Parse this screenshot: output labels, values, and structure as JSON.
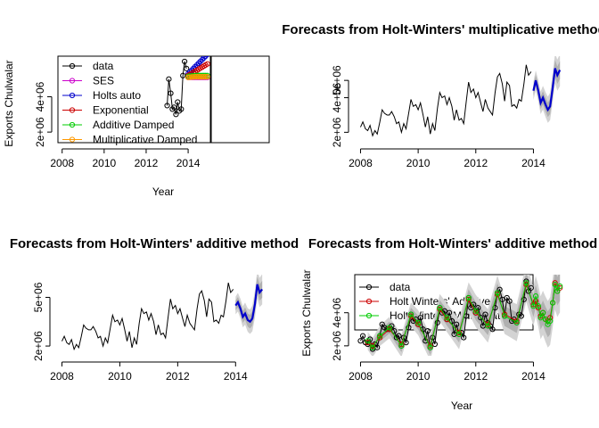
{
  "chart_data": [
    {
      "type": "line",
      "title": "",
      "xlabel": "Year",
      "ylabel": "Exports Chulwalar",
      "x_ticks": [
        "2008",
        "2010",
        "2012",
        "2014"
      ],
      "y_ticks": [
        "2e+06",
        "4e+06"
      ],
      "xlim": [
        2007.8,
        2015.1
      ],
      "ylim": [
        1400000,
        6300000
      ],
      "series": [
        {
          "name": "data",
          "color": "#000000",
          "marker": "circle",
          "x": [
            2013.0,
            2013.08,
            2013.17,
            2013.25,
            2013.33,
            2013.42,
            2013.5,
            2013.58,
            2013.67,
            2013.75,
            2013.83,
            2013.92
          ],
          "y": [
            3500000,
            5000000,
            4200000,
            3300000,
            3400000,
            3000000,
            3700000,
            3200000,
            3300000,
            5200000,
            6000000,
            5600000
          ]
        },
        {
          "name": "SES",
          "color": "#cc00cc",
          "marker": "circle",
          "x": [
            2014.0,
            2014.08,
            2014.17,
            2014.25,
            2014.33,
            2014.42,
            2014.5,
            2014.58,
            2014.67,
            2014.75,
            2014.83,
            2014.92
          ],
          "y": [
            5100000,
            5100000,
            5100000,
            5100000,
            5100000,
            5100000,
            5100000,
            5100000,
            5100000,
            5100000,
            5100000,
            5100000
          ]
        },
        {
          "name": "Holts auto",
          "color": "#0000cc",
          "marker": "circle",
          "x": [
            2014.0,
            2014.08,
            2014.17,
            2014.25,
            2014.33,
            2014.42,
            2014.5,
            2014.58,
            2014.67,
            2014.75,
            2014.83,
            2014.92
          ],
          "y": [
            5300000,
            5400000,
            5500000,
            5600000,
            5700000,
            5800000,
            5900000,
            6000000,
            6100000,
            6200000,
            6300000,
            6400000
          ]
        },
        {
          "name": "Exponential",
          "color": "#cc0000",
          "marker": "circle",
          "x": [
            2014.0,
            2014.08,
            2014.17,
            2014.25,
            2014.33,
            2014.42,
            2014.5,
            2014.58,
            2014.67,
            2014.75,
            2014.83,
            2014.92
          ],
          "y": [
            5200000,
            5260000,
            5320000,
            5380000,
            5440000,
            5500000,
            5560000,
            5620000,
            5680000,
            5740000,
            5800000,
            5860000
          ]
        },
        {
          "name": "Additive Damped",
          "color": "#00cc00",
          "marker": "circle",
          "x": [
            2014.0,
            2014.08,
            2014.17,
            2014.25,
            2014.33,
            2014.42,
            2014.5,
            2014.58,
            2014.67,
            2014.75,
            2014.83,
            2014.92
          ],
          "y": [
            5150000,
            5170000,
            5180000,
            5190000,
            5195000,
            5200000,
            5200000,
            5200000,
            5200000,
            5200000,
            5200000,
            5200000
          ]
        },
        {
          "name": "Multiplicative Damped",
          "color": "#ff9900",
          "marker": "circle",
          "x": [
            2014.0,
            2014.08,
            2014.17,
            2014.25,
            2014.33,
            2014.42,
            2014.5,
            2014.58,
            2014.67,
            2014.75,
            2014.83,
            2014.92
          ],
          "y": [
            5100000,
            5110000,
            5120000,
            5125000,
            5130000,
            5130000,
            5130000,
            5130000,
            5130000,
            5130000,
            5130000,
            5130000
          ]
        }
      ],
      "legend": [
        "data",
        "SES",
        "Holts auto",
        "Exponential",
        "Additive Damped",
        "Multiplicative Damped"
      ],
      "legend_position": "top-left"
    },
    {
      "type": "line",
      "title": "Forecasts from Holt-Winters' multiplicative method",
      "xlabel": "",
      "ylabel": "",
      "x_ticks": [
        "2008",
        "2010",
        "2012",
        "2014"
      ],
      "y_ticks": [
        "2e+06",
        "4e+06",
        "5e+06"
      ],
      "xlim": [
        2007.8,
        2015.1
      ],
      "ylim": [
        1400000,
        6400000
      ],
      "series": [
        {
          "name": "",
          "color": "#000000",
          "x": [
            2008.0,
            2008.08,
            2008.17,
            2008.25,
            2008.33,
            2008.42,
            2008.5,
            2008.58,
            2008.67,
            2008.75,
            2008.83,
            2008.92,
            2009.0,
            2009.08,
            2009.17,
            2009.25,
            2009.33,
            2009.42,
            2009.5,
            2009.58,
            2009.67,
            2009.75,
            2009.83,
            2009.92,
            2010.0,
            2010.08,
            2010.17,
            2010.25,
            2010.33,
            2010.42,
            2010.5,
            2010.58,
            2010.67,
            2010.75,
            2010.83,
            2010.92,
            2011.0,
            2011.08,
            2011.17,
            2011.25,
            2011.33,
            2011.42,
            2011.5,
            2011.58,
            2011.67,
            2011.75,
            2011.83,
            2011.92,
            2012.0,
            2012.08,
            2012.17,
            2012.25,
            2012.33,
            2012.42,
            2012.5,
            2012.58,
            2012.67,
            2012.75,
            2012.83,
            2012.92,
            2013.0,
            2013.08,
            2013.17,
            2013.25,
            2013.33,
            2013.42,
            2013.5,
            2013.58,
            2013.67,
            2013.75,
            2013.83,
            2013.92
          ],
          "y": [
            2300000,
            2600000,
            2200000,
            2100000,
            2400000,
            1800000,
            2100000,
            1900000,
            2600000,
            3300000,
            3100000,
            3000000,
            3000000,
            3200000,
            2900000,
            2500000,
            2600000,
            2000000,
            2500000,
            2200000,
            3100000,
            3900000,
            3500000,
            3600000,
            3300000,
            3700000,
            3000000,
            2300000,
            2900000,
            1900000,
            2500000,
            2100000,
            3400000,
            4300000,
            4000000,
            4100000,
            3600000,
            4000000,
            3500000,
            2700000,
            3300000,
            2700000,
            2800000,
            2500000,
            3800000,
            4900000,
            4300000,
            4500000,
            4000000,
            4300000,
            3700000,
            3200000,
            3900000,
            3400000,
            3200000,
            3000000,
            4300000,
            5200000,
            5400000,
            4800000,
            3800000,
            4900000,
            4700000,
            3500000,
            3600000,
            3400000,
            3900000,
            3800000,
            4800000,
            5900000,
            5300000,
            5500000
          ]
        },
        {
          "name": "",
          "color": "#0000cc",
          "x": [
            2014.0,
            2014.08,
            2014.17,
            2014.25,
            2014.33,
            2014.42,
            2014.5,
            2014.58,
            2014.67,
            2014.75,
            2014.83,
            2014.92
          ],
          "y": [
            4400000,
            5000000,
            4400000,
            3700000,
            4000000,
            3600000,
            3300000,
            3500000,
            4600000,
            5700000,
            5300000,
            5600000
          ]
        }
      ]
    },
    {
      "type": "line",
      "title": "Forecasts from Holt-Winters' additive method",
      "xlabel": "",
      "ylabel": "",
      "x_ticks": [
        "2008",
        "2010",
        "2012",
        "2014"
      ],
      "y_ticks": [
        "2e+06",
        "5e+06"
      ],
      "xlim": [
        2007.8,
        2015.1
      ],
      "ylim": [
        1400000,
        6400000
      ],
      "series": [
        {
          "name": "",
          "color": "#000000",
          "x": [
            2008.0,
            2008.08,
            2008.17,
            2008.25,
            2008.33,
            2008.42,
            2008.5,
            2008.58,
            2008.67,
            2008.75,
            2008.83,
            2008.92,
            2009.0,
            2009.08,
            2009.17,
            2009.25,
            2009.33,
            2009.42,
            2009.5,
            2009.58,
            2009.67,
            2009.75,
            2009.83,
            2009.92,
            2010.0,
            2010.08,
            2010.17,
            2010.25,
            2010.33,
            2010.42,
            2010.5,
            2010.58,
            2010.67,
            2010.75,
            2010.83,
            2010.92,
            2011.0,
            2011.08,
            2011.17,
            2011.25,
            2011.33,
            2011.42,
            2011.5,
            2011.58,
            2011.67,
            2011.75,
            2011.83,
            2011.92,
            2012.0,
            2012.08,
            2012.17,
            2012.25,
            2012.33,
            2012.42,
            2012.5,
            2012.58,
            2012.67,
            2012.75,
            2012.83,
            2012.92,
            2013.0,
            2013.08,
            2013.17,
            2013.25,
            2013.33,
            2013.42,
            2013.5,
            2013.58,
            2013.67,
            2013.75,
            2013.83,
            2013.92
          ],
          "y": [
            2300000,
            2600000,
            2200000,
            2100000,
            2400000,
            1800000,
            2100000,
            1900000,
            2600000,
            3300000,
            3100000,
            3000000,
            3000000,
            3200000,
            2900000,
            2500000,
            2600000,
            2000000,
            2500000,
            2200000,
            3100000,
            3900000,
            3500000,
            3600000,
            3300000,
            3700000,
            3000000,
            2300000,
            2900000,
            1900000,
            2500000,
            2100000,
            3400000,
            4300000,
            4000000,
            4100000,
            3600000,
            4000000,
            3500000,
            2700000,
            3300000,
            2700000,
            2800000,
            2500000,
            3800000,
            4900000,
            4300000,
            4500000,
            4000000,
            4300000,
            3700000,
            3200000,
            3900000,
            3400000,
            3200000,
            3000000,
            4300000,
            5200000,
            5400000,
            4800000,
            3800000,
            4900000,
            4700000,
            3500000,
            3600000,
            3400000,
            3900000,
            3800000,
            4800000,
            5900000,
            5300000,
            5500000
          ]
        },
        {
          "name": "",
          "color": "#0000cc",
          "x": [
            2014.0,
            2014.08,
            2014.17,
            2014.25,
            2014.33,
            2014.42,
            2014.5,
            2014.58,
            2014.67,
            2014.75,
            2014.83,
            2014.92
          ],
          "y": [
            4500000,
            4700000,
            4300000,
            3800000,
            4000000,
            3600000,
            3500000,
            3700000,
            4600000,
            5800000,
            5300000,
            5500000
          ]
        }
      ]
    },
    {
      "type": "line",
      "title": "Forecasts from Holt-Winters' additive method",
      "xlabel": "Year",
      "ylabel": "Exports Chulwalar",
      "x_ticks": [
        "2008",
        "2010",
        "2012",
        "2014"
      ],
      "y_ticks": [
        "2e+06",
        "4e+06"
      ],
      "xlim": [
        2007.8,
        2015.1
      ],
      "ylim": [
        1400000,
        6300000
      ],
      "series": [
        {
          "name": "data",
          "color": "#000000",
          "marker": "circle",
          "x": [
            2008.0,
            2008.08,
            2008.17,
            2008.25,
            2008.33,
            2008.42,
            2008.5,
            2008.58,
            2008.67,
            2008.75,
            2008.83,
            2008.92,
            2009.0,
            2009.08,
            2009.17,
            2009.25,
            2009.33,
            2009.42,
            2009.5,
            2009.58,
            2009.67,
            2009.75,
            2009.83,
            2009.92,
            2010.0,
            2010.08,
            2010.17,
            2010.25,
            2010.33,
            2010.42,
            2010.5,
            2010.58,
            2010.67,
            2010.75,
            2010.83,
            2010.92,
            2011.0,
            2011.08,
            2011.17,
            2011.25,
            2011.33,
            2011.42,
            2011.5,
            2011.58,
            2011.67,
            2011.75,
            2011.83,
            2011.92,
            2012.0,
            2012.08,
            2012.17,
            2012.25,
            2012.33,
            2012.42,
            2012.5,
            2012.58,
            2012.67,
            2012.75,
            2012.83,
            2012.92,
            2013.0,
            2013.08,
            2013.17,
            2013.25,
            2013.33,
            2013.42,
            2013.5,
            2013.58,
            2013.67,
            2013.75,
            2013.83,
            2013.92
          ],
          "y": [
            2300000,
            2600000,
            2200000,
            2100000,
            2400000,
            1800000,
            2100000,
            1900000,
            2600000,
            3300000,
            3100000,
            3000000,
            3000000,
            3200000,
            2900000,
            2500000,
            2600000,
            2000000,
            2500000,
            2200000,
            3100000,
            3900000,
            3500000,
            3600000,
            3300000,
            3700000,
            3000000,
            2300000,
            2900000,
            1900000,
            2500000,
            2100000,
            3400000,
            4300000,
            4000000,
            4100000,
            3600000,
            4000000,
            3500000,
            2700000,
            3300000,
            2700000,
            2800000,
            2500000,
            3800000,
            4900000,
            4300000,
            4500000,
            4000000,
            4300000,
            3700000,
            3200000,
            3900000,
            3400000,
            3200000,
            3000000,
            4300000,
            5200000,
            5400000,
            4800000,
            3800000,
            4900000,
            4700000,
            3500000,
            3600000,
            3400000,
            3900000,
            3800000,
            4800000,
            5900000,
            5300000,
            5500000
          ]
        },
        {
          "name": "Holt Winters' Additive",
          "color": "#cc0000",
          "marker": "circle",
          "x": [
            2008.25,
            2008.42,
            2008.67,
            2009.0,
            2009.42,
            2009.75,
            2010.0,
            2010.42,
            2010.75,
            2011.0,
            2011.42,
            2011.75,
            2012.0,
            2012.42,
            2012.75,
            2013.0,
            2013.42,
            2013.75,
            2014.0,
            2014.08,
            2014.17,
            2014.25,
            2014.33,
            2014.42,
            2014.5,
            2014.58,
            2014.67,
            2014.75,
            2014.83,
            2014.92
          ],
          "y": [
            2200000,
            2000000,
            2500000,
            3000000,
            2100000,
            3800000,
            3300000,
            2000000,
            4200000,
            3600000,
            2800000,
            4800000,
            4000000,
            3300000,
            5100000,
            3900000,
            3500000,
            5700000,
            4500000,
            4700000,
            4300000,
            3800000,
            4000000,
            3600000,
            3500000,
            3700000,
            4600000,
            5800000,
            5300000,
            5500000
          ]
        },
        {
          "name": "Holt Winters' Multiplicative",
          "color": "#00cc00",
          "marker": "circle",
          "x": [
            2008.25,
            2008.42,
            2008.67,
            2009.0,
            2009.42,
            2009.75,
            2010.0,
            2010.42,
            2010.75,
            2011.0,
            2011.42,
            2011.75,
            2012.0,
            2012.42,
            2012.75,
            2013.0,
            2013.42,
            2013.75,
            2014.0,
            2014.08,
            2014.17,
            2014.25,
            2014.33,
            2014.42,
            2014.5,
            2014.58,
            2014.67,
            2014.75,
            2014.83,
            2014.92
          ],
          "y": [
            2300000,
            1900000,
            2600000,
            3100000,
            2000000,
            3900000,
            3400000,
            1900000,
            4300000,
            3700000,
            2700000,
            4900000,
            4100000,
            3200000,
            5200000,
            3800000,
            3400000,
            5800000,
            4400000,
            5000000,
            4400000,
            3700000,
            4000000,
            3600000,
            3300000,
            3500000,
            4600000,
            5700000,
            5300000,
            5600000
          ]
        }
      ],
      "legend": [
        "data",
        "Holt Winters' Additive",
        "Holt Winters' Multiplicative"
      ],
      "legend_position": "top-left"
    }
  ]
}
